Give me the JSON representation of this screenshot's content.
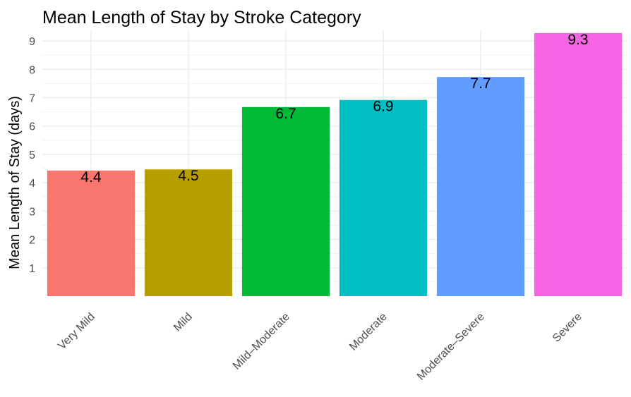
{
  "chart_data": {
    "type": "bar",
    "title": "Mean Length of Stay by Stroke Category",
    "xlabel": "",
    "ylabel": "Mean Length of Stay (days)",
    "categories": [
      "Very Mild",
      "Mild",
      "Mild–Moderate",
      "Moderate",
      "Moderate–Severe",
      "Severe"
    ],
    "values": [
      4.43,
      4.47,
      6.67,
      6.92,
      7.73,
      9.28
    ],
    "data_labels": [
      "4.4",
      "4.5",
      "6.7",
      "6.9",
      "7.7",
      "9.3"
    ],
    "colors": [
      "#F8766D",
      "#B79F00",
      "#00BA38",
      "#00BFC4",
      "#619CFF",
      "#F564E3"
    ],
    "y_ticks": [
      1,
      2,
      3,
      4,
      5,
      6,
      7,
      8,
      9
    ],
    "ylim": [
      0,
      9.4
    ],
    "grid": true,
    "legend": "none",
    "x_tick_rotation": "45 degrees"
  }
}
